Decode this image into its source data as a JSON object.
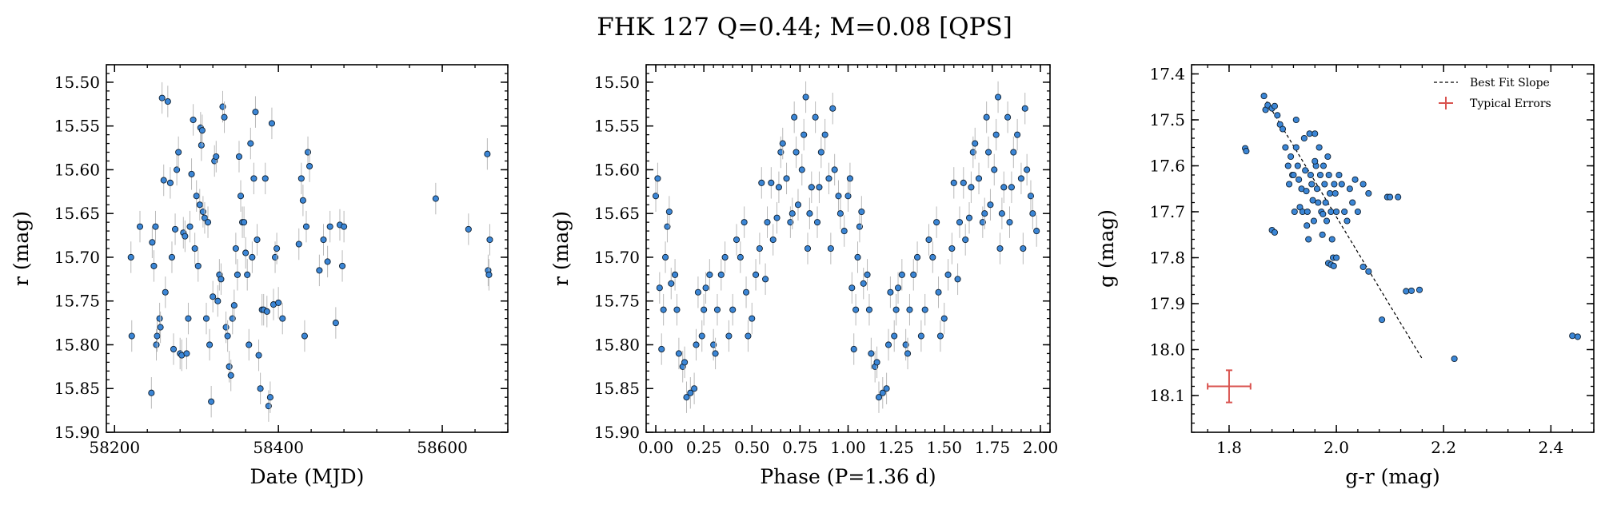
{
  "figure": {
    "title": "FHK 127  Q=0.44; M=0.08 [QPS]"
  },
  "colors": {
    "point_fill": "#3b86d6",
    "point_edge": "#102030",
    "errorbar": "#b9b9b9",
    "fit_line": "#000000",
    "typical_error": "#d9534f"
  },
  "chart_data": [
    {
      "type": "scatter",
      "xlabel": "Date (MJD)",
      "ylabel": "r (mag)",
      "xlim": [
        58190,
        58680
      ],
      "ylim": [
        15.9,
        15.48
      ],
      "y_inverted": true,
      "xticks": [
        58200,
        58400,
        58600
      ],
      "yticks": [
        15.5,
        15.55,
        15.6,
        15.65,
        15.7,
        15.75,
        15.8,
        15.85,
        15.9
      ],
      "xtick_labels": [
        "58200",
        "58400",
        "58600"
      ],
      "ytick_labels": [
        "15.50",
        "15.55",
        "15.60",
        "15.65",
        "15.70",
        "15.75",
        "15.80",
        "15.85",
        "15.90"
      ],
      "yerr": 0.018,
      "points": [
        [
          58220,
          15.7
        ],
        [
          58221,
          15.79
        ],
        [
          58231,
          15.665
        ],
        [
          58245,
          15.855
        ],
        [
          58246,
          15.683
        ],
        [
          58248,
          15.71
        ],
        [
          58250,
          15.665
        ],
        [
          58251,
          15.8
        ],
        [
          58252,
          15.79
        ],
        [
          58255,
          15.77
        ],
        [
          58256,
          15.78
        ],
        [
          58258,
          15.518
        ],
        [
          58260,
          15.612
        ],
        [
          58262,
          15.74
        ],
        [
          58265,
          15.522
        ],
        [
          58268,
          15.615
        ],
        [
          58270,
          15.7
        ],
        [
          58272,
          15.805
        ],
        [
          58274,
          15.668
        ],
        [
          58276,
          15.6
        ],
        [
          58278,
          15.58
        ],
        [
          58280,
          15.81
        ],
        [
          58282,
          15.812
        ],
        [
          58284,
          15.672
        ],
        [
          58286,
          15.676
        ],
        [
          58288,
          15.81
        ],
        [
          58290,
          15.77
        ],
        [
          58292,
          15.665
        ],
        [
          58294,
          15.605
        ],
        [
          58296,
          15.543
        ],
        [
          58298,
          15.69
        ],
        [
          58300,
          15.63
        ],
        [
          58302,
          15.71
        ],
        [
          58304,
          15.64
        ],
        [
          58305,
          15.552
        ],
        [
          58306,
          15.572
        ],
        [
          58307,
          15.555
        ],
        [
          58308,
          15.648
        ],
        [
          58310,
          15.655
        ],
        [
          58312,
          15.77
        ],
        [
          58314,
          15.66
        ],
        [
          58316,
          15.8
        ],
        [
          58318,
          15.865
        ],
        [
          58320,
          15.745
        ],
        [
          58322,
          15.59
        ],
        [
          58324,
          15.585
        ],
        [
          58326,
          15.75
        ],
        [
          58328,
          15.72
        ],
        [
          58330,
          15.725
        ],
        [
          58332,
          15.528
        ],
        [
          58334,
          15.54
        ],
        [
          58336,
          15.78
        ],
        [
          58338,
          15.79
        ],
        [
          58340,
          15.825
        ],
        [
          58342,
          15.835
        ],
        [
          58344,
          15.77
        ],
        [
          58346,
          15.755
        ],
        [
          58348,
          15.69
        ],
        [
          58350,
          15.72
        ],
        [
          58352,
          15.585
        ],
        [
          58354,
          15.63
        ],
        [
          58356,
          15.66
        ],
        [
          58358,
          15.66
        ],
        [
          58360,
          15.695
        ],
        [
          58362,
          15.72
        ],
        [
          58364,
          15.8
        ],
        [
          58366,
          15.57
        ],
        [
          58368,
          15.7
        ],
        [
          58370,
          15.61
        ],
        [
          58372,
          15.534
        ],
        [
          58374,
          15.68
        ],
        [
          58376,
          15.812
        ],
        [
          58378,
          15.85
        ],
        [
          58380,
          15.76
        ],
        [
          58382,
          15.76
        ],
        [
          58384,
          15.61
        ],
        [
          58386,
          15.762
        ],
        [
          58388,
          15.87
        ],
        [
          58390,
          15.86
        ],
        [
          58392,
          15.547
        ],
        [
          58394,
          15.754
        ],
        [
          58396,
          15.7
        ],
        [
          58398,
          15.69
        ],
        [
          58400,
          15.752
        ],
        [
          58405,
          15.77
        ],
        [
          58425,
          15.685
        ],
        [
          58428,
          15.61
        ],
        [
          58430,
          15.635
        ],
        [
          58432,
          15.79
        ],
        [
          58434,
          15.665
        ],
        [
          58436,
          15.58
        ],
        [
          58438,
          15.596
        ],
        [
          58450,
          15.715
        ],
        [
          58455,
          15.68
        ],
        [
          58460,
          15.705
        ],
        [
          58463,
          15.665
        ],
        [
          58470,
          15.775
        ],
        [
          58475,
          15.663
        ],
        [
          58478,
          15.71
        ],
        [
          58480,
          15.665
        ],
        [
          58592,
          15.633
        ],
        [
          58632,
          15.668
        ],
        [
          58655,
          15.582
        ],
        [
          58656,
          15.715
        ],
        [
          58657,
          15.72
        ],
        [
          58658,
          15.68
        ]
      ]
    },
    {
      "type": "scatter",
      "xlabel": "Phase (P=1.36 d)",
      "ylabel": "r (mag)",
      "xlim": [
        -0.05,
        2.05
      ],
      "ylim": [
        15.9,
        15.48
      ],
      "y_inverted": true,
      "xticks": [
        0.0,
        0.25,
        0.5,
        0.75,
        1.0,
        1.25,
        1.5,
        1.75,
        2.0
      ],
      "yticks": [
        15.5,
        15.55,
        15.6,
        15.65,
        15.7,
        15.75,
        15.8,
        15.85,
        15.9
      ],
      "xtick_labels": [
        "0.00",
        "0.25",
        "0.50",
        "0.75",
        "1.00",
        "1.25",
        "1.50",
        "1.75",
        "2.00"
      ],
      "ytick_labels": [
        "15.50",
        "15.55",
        "15.60",
        "15.65",
        "15.70",
        "15.75",
        "15.80",
        "15.85",
        "15.90"
      ],
      "yerr": 0.018,
      "period_days": 1.36,
      "points_phase_0_1": [
        [
          0.0,
          15.63
        ],
        [
          0.01,
          15.61
        ],
        [
          0.02,
          15.735
        ],
        [
          0.03,
          15.805
        ],
        [
          0.04,
          15.76
        ],
        [
          0.05,
          15.7
        ],
        [
          0.06,
          15.665
        ],
        [
          0.07,
          15.648
        ],
        [
          0.08,
          15.73
        ],
        [
          0.1,
          15.72
        ],
        [
          0.11,
          15.76
        ],
        [
          0.12,
          15.81
        ],
        [
          0.14,
          15.825
        ],
        [
          0.15,
          15.82
        ],
        [
          0.16,
          15.86
        ],
        [
          0.18,
          15.855
        ],
        [
          0.2,
          15.85
        ],
        [
          0.21,
          15.8
        ],
        [
          0.22,
          15.74
        ],
        [
          0.24,
          15.79
        ],
        [
          0.25,
          15.76
        ],
        [
          0.26,
          15.735
        ],
        [
          0.28,
          15.72
        ],
        [
          0.3,
          15.8
        ],
        [
          0.31,
          15.81
        ],
        [
          0.32,
          15.76
        ],
        [
          0.34,
          15.72
        ],
        [
          0.36,
          15.7
        ],
        [
          0.38,
          15.79
        ],
        [
          0.4,
          15.76
        ],
        [
          0.42,
          15.68
        ],
        [
          0.44,
          15.7
        ],
        [
          0.46,
          15.66
        ],
        [
          0.47,
          15.74
        ],
        [
          0.48,
          15.79
        ],
        [
          0.5,
          15.77
        ],
        [
          0.52,
          15.72
        ],
        [
          0.54,
          15.69
        ],
        [
          0.55,
          15.615
        ],
        [
          0.57,
          15.725
        ],
        [
          0.58,
          15.66
        ],
        [
          0.6,
          15.615
        ],
        [
          0.61,
          15.68
        ],
        [
          0.63,
          15.655
        ],
        [
          0.64,
          15.62
        ],
        [
          0.65,
          15.58
        ],
        [
          0.66,
          15.57
        ],
        [
          0.68,
          15.61
        ],
        [
          0.7,
          15.66
        ],
        [
          0.71,
          15.65
        ],
        [
          0.72,
          15.54
        ],
        [
          0.73,
          15.58
        ],
        [
          0.74,
          15.64
        ],
        [
          0.76,
          15.6
        ],
        [
          0.77,
          15.56
        ],
        [
          0.78,
          15.517
        ],
        [
          0.79,
          15.69
        ],
        [
          0.8,
          15.65
        ],
        [
          0.81,
          15.62
        ],
        [
          0.83,
          15.54
        ],
        [
          0.84,
          15.66
        ],
        [
          0.85,
          15.62
        ],
        [
          0.86,
          15.58
        ],
        [
          0.88,
          15.56
        ],
        [
          0.9,
          15.61
        ],
        [
          0.91,
          15.69
        ],
        [
          0.92,
          15.53
        ],
        [
          0.93,
          15.6
        ],
        [
          0.95,
          15.63
        ],
        [
          0.96,
          15.65
        ],
        [
          0.98,
          15.67
        ]
      ]
    },
    {
      "type": "scatter",
      "xlabel": "g-r (mag)",
      "ylabel": "g (mag)",
      "xlim": [
        1.73,
        2.48
      ],
      "ylim": [
        18.18,
        17.38
      ],
      "y_inverted": true,
      "xticks": [
        1.8,
        2.0,
        2.2,
        2.4
      ],
      "yticks": [
        17.4,
        17.5,
        17.6,
        17.7,
        17.8,
        17.9,
        18.0,
        18.1
      ],
      "xtick_labels": [
        "1.8",
        "2.0",
        "2.2",
        "2.4"
      ],
      "ytick_labels": [
        "17.4",
        "17.5",
        "17.6",
        "17.7",
        "17.8",
        "17.9",
        "18.0",
        "18.1"
      ],
      "fit_line": {
        "x": [
          1.87,
          2.16
        ],
        "y": [
          17.46,
          18.02
        ]
      },
      "typical_error": {
        "x": 1.8,
        "y": 18.08,
        "xerr": 0.04,
        "yerr": 0.035
      },
      "legend": {
        "position": "top-right",
        "entries": [
          "Best Fit Slope",
          "Typical Errors"
        ]
      },
      "points": [
        [
          1.865,
          17.448
        ],
        [
          1.868,
          17.478
        ],
        [
          1.872,
          17.468
        ],
        [
          1.88,
          17.475
        ],
        [
          1.885,
          17.47
        ],
        [
          1.89,
          17.49
        ],
        [
          1.895,
          17.51
        ],
        [
          1.9,
          17.52
        ],
        [
          1.905,
          17.56
        ],
        [
          1.91,
          17.6
        ],
        [
          1.912,
          17.64
        ],
        [
          1.915,
          17.58
        ],
        [
          1.918,
          17.62
        ],
        [
          1.92,
          17.62
        ],
        [
          1.922,
          17.7
        ],
        [
          1.925,
          17.56
        ],
        [
          1.928,
          17.6
        ],
        [
          1.93,
          17.63
        ],
        [
          1.932,
          17.69
        ],
        [
          1.935,
          17.65
        ],
        [
          1.937,
          17.7
        ],
        [
          1.94,
          17.54
        ],
        [
          1.942,
          17.61
        ],
        [
          1.944,
          17.655
        ],
        [
          1.946,
          17.7
        ],
        [
          1.948,
          17.76
        ],
        [
          1.95,
          17.53
        ],
        [
          1.952,
          17.62
        ],
        [
          1.954,
          17.64
        ],
        [
          1.956,
          17.675
        ],
        [
          1.958,
          17.72
        ],
        [
          1.96,
          17.53
        ],
        [
          1.962,
          17.6
        ],
        [
          1.964,
          17.65
        ],
        [
          1.966,
          17.68
        ],
        [
          1.968,
          17.56
        ],
        [
          1.97,
          17.62
        ],
        [
          1.972,
          17.7
        ],
        [
          1.974,
          17.75
        ],
        [
          1.976,
          17.6
        ],
        [
          1.978,
          17.64
        ],
        [
          1.98,
          17.68
        ],
        [
          1.982,
          17.72
        ],
        [
          1.984,
          17.58
        ],
        [
          1.986,
          17.62
        ],
        [
          1.988,
          17.66
        ],
        [
          1.99,
          17.7
        ],
        [
          1.992,
          17.76
        ],
        [
          1.994,
          17.8
        ],
        [
          1.996,
          17.64
        ],
        [
          1.998,
          17.66
        ],
        [
          2.0,
          17.7
        ],
        [
          2.005,
          17.62
        ],
        [
          2.01,
          17.64
        ],
        [
          2.015,
          17.7
        ],
        [
          2.02,
          17.72
        ],
        [
          2.025,
          17.65
        ],
        [
          2.03,
          17.68
        ],
        [
          2.035,
          17.63
        ],
        [
          2.04,
          17.7
        ],
        [
          2.05,
          17.64
        ],
        [
          2.06,
          17.66
        ],
        [
          2.095,
          17.668
        ],
        [
          2.1,
          17.668
        ],
        [
          2.115,
          17.668
        ],
        [
          1.83,
          17.562
        ],
        [
          1.832,
          17.568
        ],
        [
          1.985,
          17.812
        ],
        [
          1.99,
          17.815
        ],
        [
          1.995,
          17.818
        ],
        [
          2.0,
          17.8
        ],
        [
          2.05,
          17.82
        ],
        [
          2.06,
          17.83
        ],
        [
          2.085,
          17.935
        ],
        [
          2.13,
          17.873
        ],
        [
          2.14,
          17.872
        ],
        [
          2.155,
          17.87
        ],
        [
          2.22,
          18.02
        ],
        [
          2.44,
          17.97
        ],
        [
          2.45,
          17.972
        ],
        [
          1.88,
          17.74
        ],
        [
          1.885,
          17.745
        ],
        [
          1.96,
          17.59
        ],
        [
          1.975,
          17.705
        ],
        [
          1.945,
          17.73
        ],
        [
          1.925,
          17.5
        ]
      ]
    }
  ]
}
